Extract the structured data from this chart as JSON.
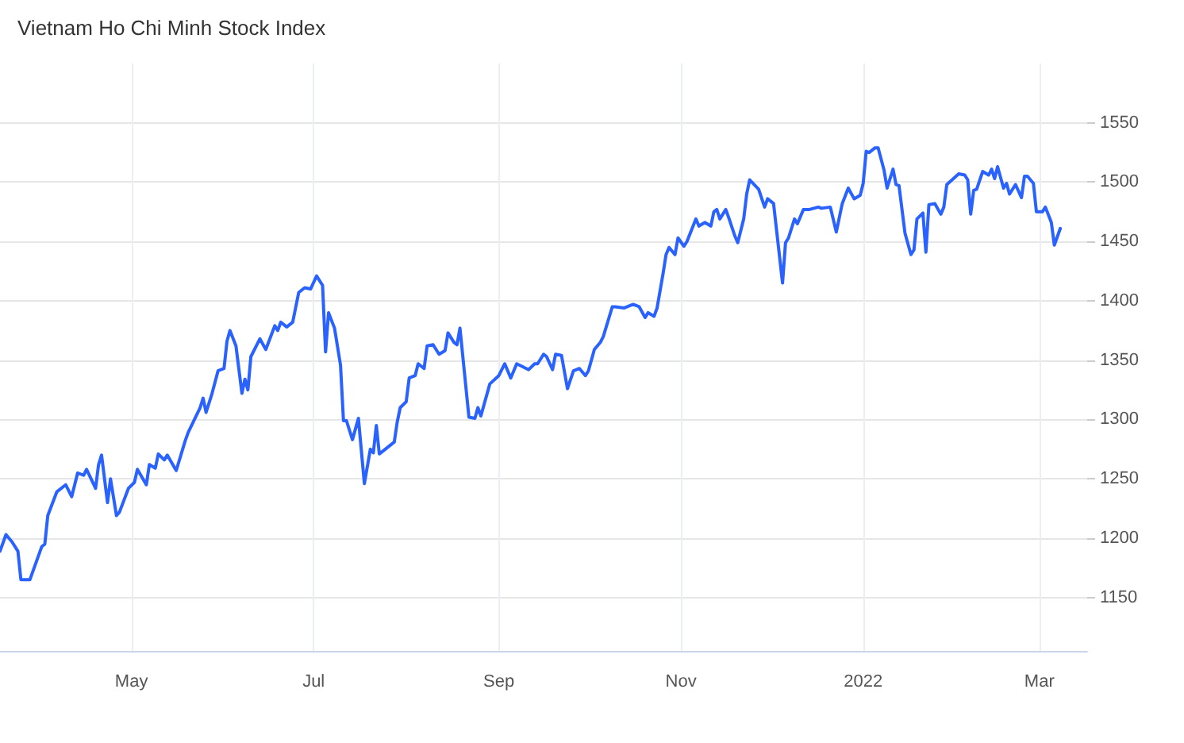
{
  "chart_data": {
    "type": "line",
    "title": "Vietnam Ho Chi Minh Stock Index",
    "x": [
      "2021-03-18",
      "2021-03-20",
      "2021-03-22",
      "2021-03-24",
      "2021-03-25",
      "2021-03-28",
      "2021-04-01",
      "2021-04-02",
      "2021-04-03",
      "2021-04-06",
      "2021-04-09",
      "2021-04-11",
      "2021-04-13",
      "2021-04-15",
      "2021-04-16",
      "2021-04-19",
      "2021-04-20",
      "2021-04-21",
      "2021-04-23",
      "2021-04-24",
      "2021-04-26",
      "2021-04-27",
      "2021-04-30",
      "2021-05-02",
      "2021-05-03",
      "2021-05-06",
      "2021-05-07",
      "2021-05-09",
      "2021-05-10",
      "2021-05-12",
      "2021-05-13",
      "2021-05-16",
      "2021-05-19",
      "2021-05-20",
      "2021-05-24",
      "2021-05-25",
      "2021-05-26",
      "2021-05-28",
      "2021-05-30",
      "2021-06-01",
      "2021-06-02",
      "2021-06-03",
      "2021-06-05",
      "2021-06-07",
      "2021-06-08",
      "2021-06-09",
      "2021-06-10",
      "2021-06-13",
      "2021-06-15",
      "2021-06-18",
      "2021-06-19",
      "2021-06-20",
      "2021-06-22",
      "2021-06-24",
      "2021-06-26",
      "2021-06-28",
      "2021-06-30",
      "2021-07-02",
      "2021-07-04",
      "2021-07-05",
      "2021-07-06",
      "2021-07-08",
      "2021-07-10",
      "2021-07-11",
      "2021-07-12",
      "2021-07-14",
      "2021-07-16",
      "2021-07-18",
      "2021-07-20",
      "2021-07-21",
      "2021-07-22",
      "2021-07-23",
      "2021-07-27",
      "2021-07-28",
      "2021-07-29",
      "2021-07-30",
      "2021-08-01",
      "2021-08-02",
      "2021-08-04",
      "2021-08-05",
      "2021-08-07",
      "2021-08-08",
      "2021-08-10",
      "2021-08-12",
      "2021-08-14",
      "2021-08-15",
      "2021-08-17",
      "2021-08-18",
      "2021-08-19",
      "2021-08-22",
      "2021-08-24",
      "2021-08-25",
      "2021-08-26",
      "2021-08-29",
      "2021-09-01",
      "2021-09-03",
      "2021-09-05",
      "2021-09-07",
      "2021-09-11",
      "2021-09-13",
      "2021-09-14",
      "2021-09-16",
      "2021-09-17",
      "2021-09-19",
      "2021-09-20",
      "2021-09-22",
      "2021-09-24",
      "2021-09-26",
      "2021-09-28",
      "2021-09-30",
      "2021-10-01",
      "2021-10-03",
      "2021-10-05",
      "2021-10-06",
      "2021-10-09",
      "2021-10-10",
      "2021-10-13",
      "2021-10-16",
      "2021-10-18",
      "2021-10-20",
      "2021-10-21",
      "2021-10-23",
      "2021-10-24",
      "2021-10-26",
      "2021-10-27",
      "2021-10-28",
      "2021-10-30",
      "2021-10-31",
      "2021-11-02",
      "2021-11-03",
      "2021-11-06",
      "2021-11-07",
      "2021-11-09",
      "2021-11-11",
      "2021-11-12",
      "2021-11-13",
      "2021-11-14",
      "2021-11-16",
      "2021-11-17",
      "2021-11-19",
      "2021-11-20",
      "2021-11-22",
      "2021-11-23",
      "2021-11-24",
      "2021-11-27",
      "2021-11-29",
      "2021-11-30",
      "2021-12-02",
      "2021-12-05",
      "2021-12-06",
      "2021-12-07",
      "2021-12-09",
      "2021-12-10",
      "2021-12-12",
      "2021-12-14",
      "2021-12-17",
      "2021-12-18",
      "2021-12-21",
      "2021-12-23",
      "2021-12-25",
      "2021-12-27",
      "2021-12-29",
      "2021-12-31",
      "2022-01-01",
      "2022-01-02",
      "2022-01-03",
      "2022-01-05",
      "2022-01-06",
      "2022-01-08",
      "2022-01-09",
      "2022-01-11",
      "2022-01-12",
      "2022-01-13",
      "2022-01-15",
      "2022-01-17",
      "2022-01-18",
      "2022-01-19",
      "2022-01-21",
      "2022-01-22",
      "2022-01-23",
      "2022-01-25",
      "2022-01-27",
      "2022-01-28",
      "2022-01-29",
      "2022-02-02",
      "2022-02-04",
      "2022-02-05",
      "2022-02-06",
      "2022-02-07",
      "2022-02-08",
      "2022-02-10",
      "2022-02-12",
      "2022-02-13",
      "2022-02-14",
      "2022-02-15",
      "2022-02-17",
      "2022-02-18",
      "2022-02-19",
      "2022-02-21",
      "2022-02-23",
      "2022-02-24",
      "2022-02-25",
      "2022-02-27",
      "2022-02-28",
      "2022-03-02",
      "2022-03-03",
      "2022-03-05",
      "2022-03-06",
      "2022-03-08"
    ],
    "series": [
      {
        "color": "#2962ff",
        "values": [
          1189,
          1203,
          1197,
          1189,
          1165,
          1165,
          1193,
          1195,
          1219,
          1239,
          1245,
          1235,
          1255,
          1253,
          1258,
          1242,
          1262,
          1270,
          1230,
          1250,
          1219,
          1222,
          1242,
          1247,
          1258,
          1245,
          1262,
          1259,
          1271,
          1266,
          1270,
          1257,
          1282,
          1289,
          1310,
          1318,
          1306,
          1322,
          1341,
          1343,
          1366,
          1375,
          1362,
          1322,
          1334,
          1325,
          1353,
          1368,
          1359,
          1379,
          1375,
          1382,
          1378,
          1382,
          1407,
          1411,
          1410,
          1421,
          1413,
          1357,
          1390,
          1377,
          1346,
          1299,
          1299,
          1283,
          1301,
          1246,
          1275,
          1272,
          1295,
          1271,
          1279,
          1281,
          1298,
          1310,
          1315,
          1335,
          1337,
          1347,
          1343,
          1362,
          1363,
          1355,
          1358,
          1373,
          1365,
          1363,
          1377,
          1302,
          1301,
          1310,
          1303,
          1330,
          1337,
          1347,
          1335,
          1347,
          1342,
          1347,
          1347,
          1355,
          1353,
          1342,
          1355,
          1354,
          1326,
          1341,
          1343,
          1337,
          1341,
          1359,
          1365,
          1370,
          1395,
          1395,
          1394,
          1397,
          1395,
          1386,
          1390,
          1387,
          1394,
          1423,
          1439,
          1445,
          1439,
          1453,
          1446,
          1450,
          1469,
          1463,
          1466,
          1463,
          1475,
          1477,
          1469,
          1477,
          1470,
          1455,
          1449,
          1469,
          1490,
          1502,
          1494,
          1479,
          1486,
          1482,
          1415,
          1449,
          1453,
          1469,
          1465,
          1477,
          1477,
          1479,
          1478,
          1479,
          1458,
          1482,
          1495,
          1486,
          1489,
          1499,
          1526,
          1525,
          1529,
          1529,
          1510,
          1495,
          1511,
          1498,
          1497,
          1457,
          1439,
          1443,
          1469,
          1474,
          1441,
          1481,
          1482,
          1473,
          1479,
          1498,
          1507,
          1506,
          1502,
          1473,
          1493,
          1494,
          1509,
          1506,
          1511,
          1503,
          1513,
          1495,
          1499,
          1490,
          1498,
          1487,
          1505,
          1505,
          1499,
          1475,
          1475,
          1479,
          1466,
          1447,
          1461
        ]
      }
    ],
    "xlim": [
      "2021-03-18",
      "2022-03-17"
    ],
    "xticks": [
      {
        "value": "2021-05-01",
        "label": "May"
      },
      {
        "value": "2021-07-01",
        "label": "Jul"
      },
      {
        "value": "2021-09-01",
        "label": "Sep"
      },
      {
        "value": "2021-11-01",
        "label": "Nov"
      },
      {
        "value": "2022-01-01",
        "label": "2022"
      },
      {
        "value": "2022-03-01",
        "label": "Mar"
      }
    ],
    "ylim": [
      1105,
      1600
    ],
    "yticks": [
      1150,
      1200,
      1250,
      1300,
      1350,
      1400,
      1450,
      1500,
      1550
    ],
    "grid": true,
    "marker": "none",
    "line_style": "solid"
  }
}
